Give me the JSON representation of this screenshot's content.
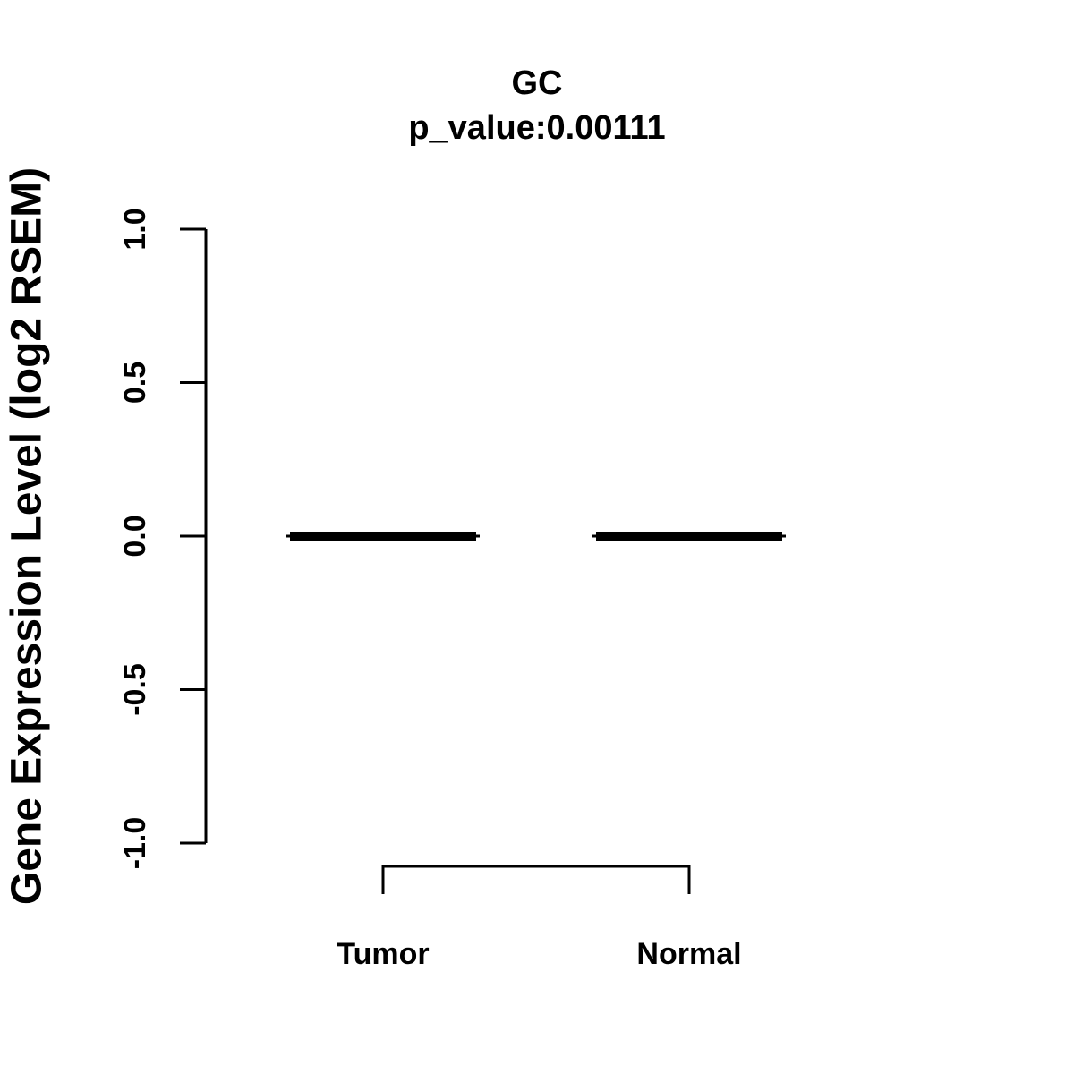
{
  "figure": {
    "background_color": "#ffffff",
    "foreground_color": "#000000"
  },
  "chart_data": {
    "type": "box",
    "title": "GC",
    "subtitle": "p_value:0.00111",
    "p_value": 0.00111,
    "gene": "GC",
    "ylabel": "Gene Expression Level (log2 RSEM)",
    "xlabel": "",
    "categories": [
      "Tumor",
      "Normal"
    ],
    "series": [
      {
        "name": "Tumor",
        "median": 0.0,
        "q1": 0.0,
        "q3": 0.0,
        "whisker_low": 0.0,
        "whisker_high": 0.0
      },
      {
        "name": "Normal",
        "median": 0.0,
        "q1": 0.0,
        "q3": 0.0,
        "whisker_low": 0.0,
        "whisker_high": 0.0
      }
    ],
    "ylim": [
      -1.0,
      1.0
    ],
    "yticks": [
      1.0,
      0.5,
      0.0,
      -0.5,
      -1.0
    ],
    "ytick_labels": [
      "1.0",
      "0.5",
      "0.0",
      "-0.5",
      "-1.0"
    ],
    "grid": false,
    "legend": "none",
    "annotation_bracket": {
      "connects": [
        "Tumor",
        "Normal"
      ]
    },
    "colors": {
      "box": "#000000",
      "text": "#000000",
      "background": "#ffffff"
    }
  }
}
